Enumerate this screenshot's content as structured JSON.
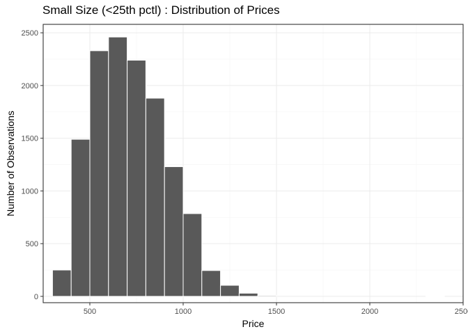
{
  "chart_data": {
    "type": "bar",
    "title": "Small Size (<25th pctl) :  Distribution of Prices",
    "xlabel": "Price",
    "ylabel": "Number of Observations",
    "xlim": [
      250,
      2500
    ],
    "ylim": [
      -60,
      2580
    ],
    "xticks": [
      500,
      1000,
      1500,
      2000,
      2500
    ],
    "yticks": [
      0,
      500,
      1000,
      1500,
      2000,
      2500
    ],
    "bin_width": 100,
    "bins": [
      {
        "x0": 300,
        "x1": 400,
        "count": 250
      },
      {
        "x0": 400,
        "x1": 500,
        "count": 1490
      },
      {
        "x0": 500,
        "x1": 600,
        "count": 2330
      },
      {
        "x0": 600,
        "x1": 700,
        "count": 2460
      },
      {
        "x0": 700,
        "x1": 800,
        "count": 2240
      },
      {
        "x0": 800,
        "x1": 900,
        "count": 1880
      },
      {
        "x0": 900,
        "x1": 1000,
        "count": 1230
      },
      {
        "x0": 1000,
        "x1": 1100,
        "count": 785
      },
      {
        "x0": 1100,
        "x1": 1200,
        "count": 245
      },
      {
        "x0": 1200,
        "x1": 1300,
        "count": 105
      },
      {
        "x0": 1300,
        "x1": 1400,
        "count": 30
      },
      {
        "x0": 1400,
        "x1": 1500,
        "count": 8
      },
      {
        "x0": 2300,
        "x1": 2400,
        "count": 1
      }
    ],
    "grid": true,
    "bar_fill": "#595959",
    "bar_stroke": "#ffffff",
    "grid_major_color": "#ebebeb",
    "grid_minor_color": "#f5f5f5",
    "panel_border_color": "#333333"
  }
}
